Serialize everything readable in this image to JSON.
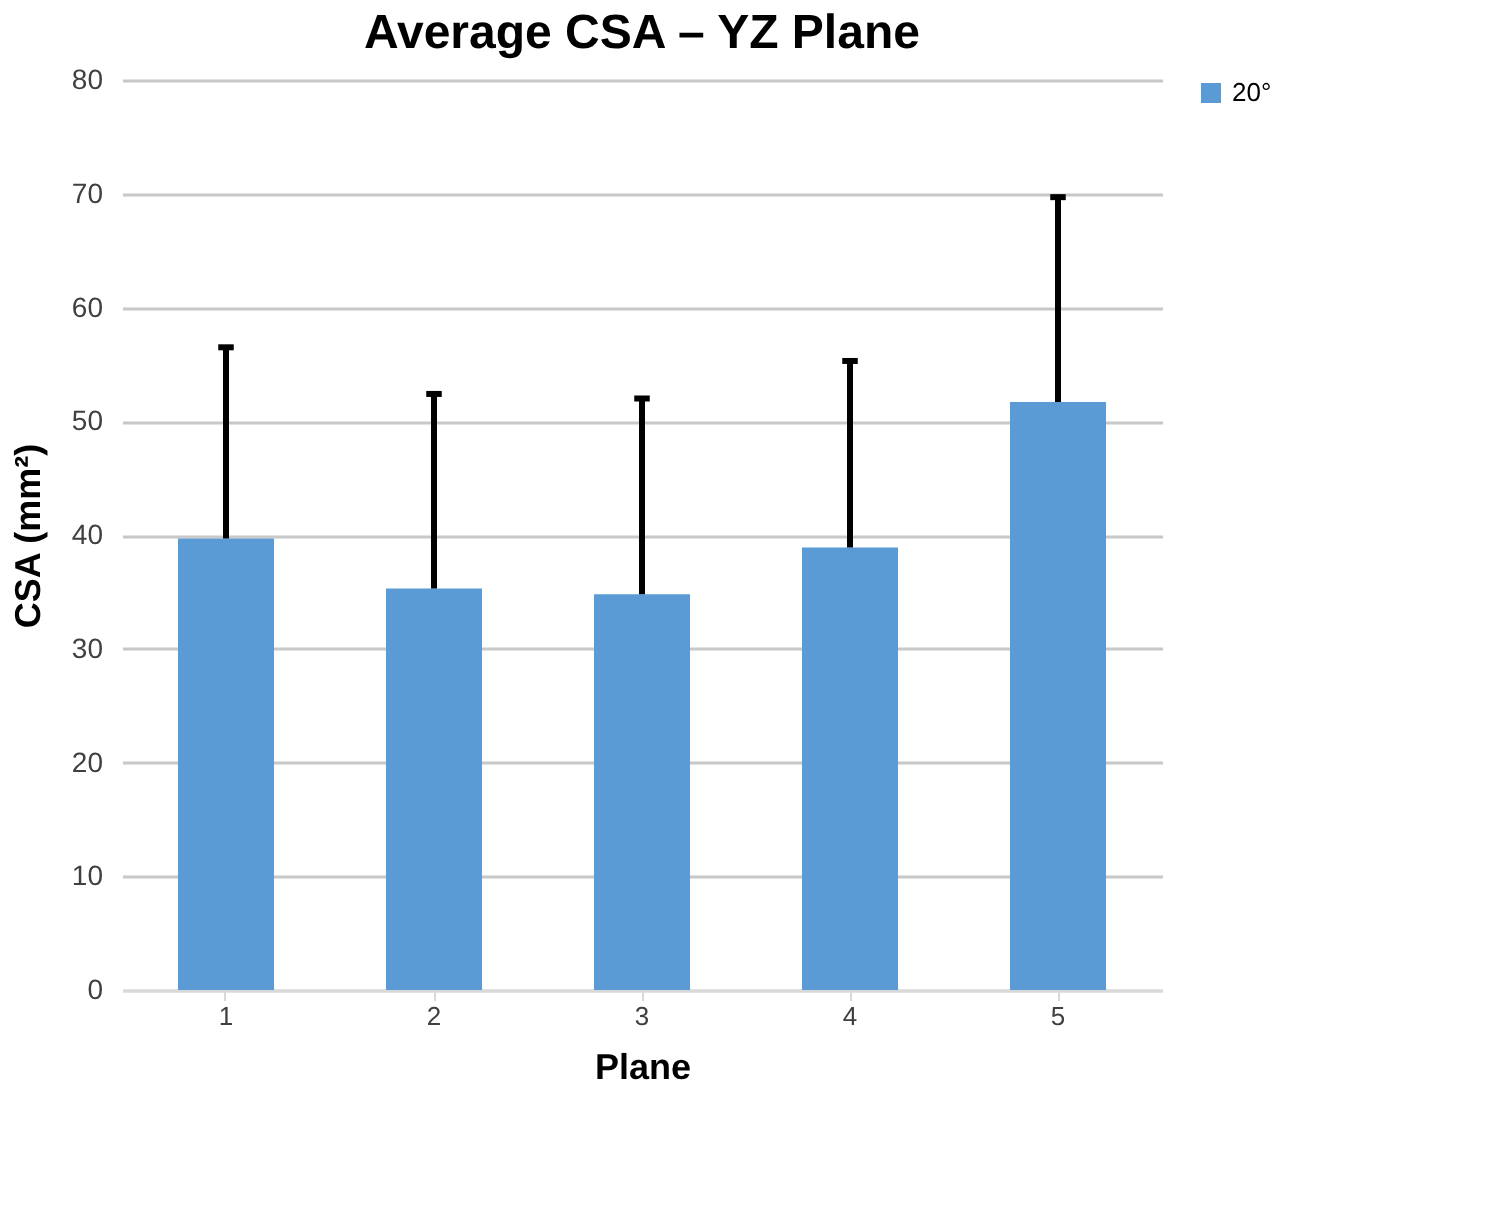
{
  "chart_data": {
    "type": "bar",
    "title": "Average CSA – YZ Plane",
    "xlabel": "Plane",
    "ylabel": "CSA (mm²)",
    "categories": [
      "1",
      "2",
      "3",
      "4",
      "5"
    ],
    "series": [
      {
        "name": "20°",
        "color": "#5b9bd5",
        "values": [
          39.7,
          35.3,
          34.8,
          38.9,
          51.7
        ],
        "errors": [
          [
            39.7,
            56.5
          ],
          [
            35.3,
            52.4
          ],
          [
            34.8,
            52.0
          ],
          [
            38.9,
            55.3
          ],
          [
            51.7,
            69.7
          ]
        ]
      }
    ],
    "ylim": [
      0,
      80
    ],
    "yticks": [
      0,
      10,
      20,
      30,
      40,
      50,
      60,
      70,
      80
    ],
    "grid": "y",
    "legend": "right"
  }
}
